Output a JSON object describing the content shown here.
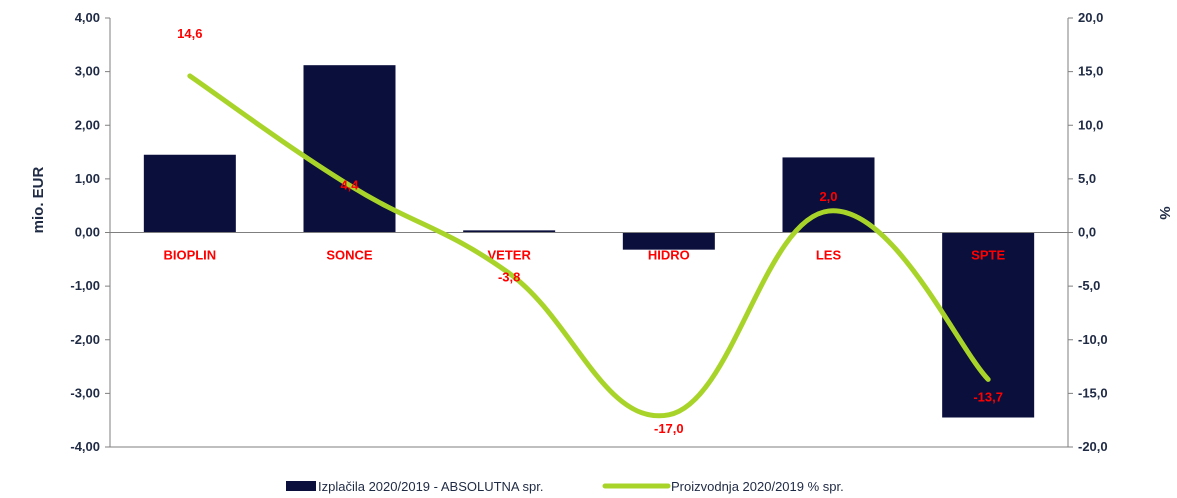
{
  "chart_data": {
    "type": "bar",
    "categories": [
      "BIOPLIN",
      "SONCE",
      "VETER",
      "HIDRO",
      "LES",
      "SPTE"
    ],
    "series": [
      {
        "name": "Izplačila 2020/2019 - ABSOLUTNA spr.",
        "type": "bar",
        "axis": "left",
        "color": "#0a0f3c",
        "values": [
          1.45,
          3.12,
          0.04,
          -0.32,
          1.4,
          -3.45
        ]
      },
      {
        "name": "Proizvodnja 2020/2019 % spr.",
        "type": "line",
        "axis": "right",
        "color": "#a8d42a",
        "values": [
          14.6,
          4.4,
          -3.8,
          -17.0,
          2.0,
          -13.7
        ],
        "labels": [
          "14,6",
          "4,4",
          "-3,8",
          "-17,0",
          "2,0",
          "-13,7"
        ]
      }
    ],
    "ylabel": "mio. EUR",
    "y2label": "%",
    "ylim": [
      -4,
      4
    ],
    "y2lim": [
      -20,
      20
    ],
    "yticks": [
      "4,00",
      "3,00",
      "2,00",
      "1,00",
      "0,00",
      "-1,00",
      "-2,00",
      "-3,00",
      "-4,00"
    ],
    "y2ticks": [
      "20,0",
      "15,0",
      "10,0",
      "5,0",
      "0,0",
      "-5,0",
      "-10,0",
      "-15,0",
      "-20,0"
    ],
    "grid": false,
    "legend": "bottom",
    "category_label_color": "#ff0000",
    "data_label_color": "#ff0000"
  }
}
